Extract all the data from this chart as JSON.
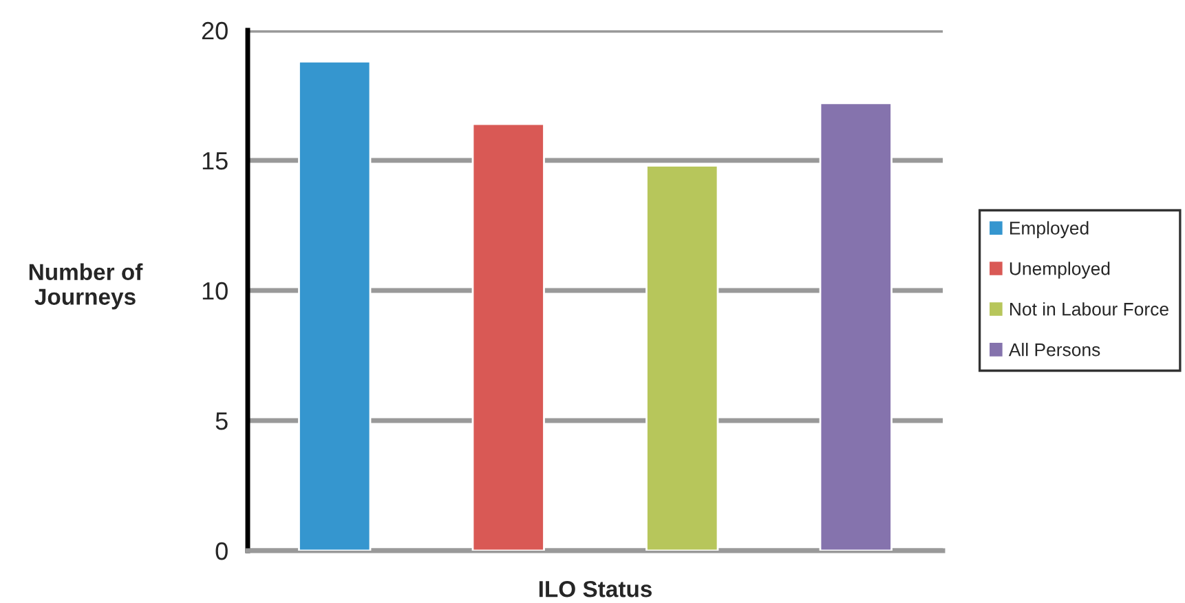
{
  "chart_data": {
    "type": "bar",
    "xlabel": "ILO Status",
    "ylabel": "Number of\nJourneys",
    "categories": [
      null
    ],
    "series": [
      {
        "name": "Employed",
        "color": "#3596cf",
        "values": [
          18.8
        ]
      },
      {
        "name": "Unemployed",
        "color": "#d95955",
        "values": [
          16.4
        ]
      },
      {
        "name": "Not in Labour Force",
        "color": "#b7c65b",
        "values": [
          14.8
        ]
      },
      {
        "name": "All Persons",
        "color": "#8573ad",
        "values": [
          17.2
        ]
      }
    ],
    "ylim": [
      0,
      20
    ],
    "yticks": [
      0,
      5,
      10,
      15,
      20
    ],
    "grid": "y",
    "legend": "right"
  }
}
